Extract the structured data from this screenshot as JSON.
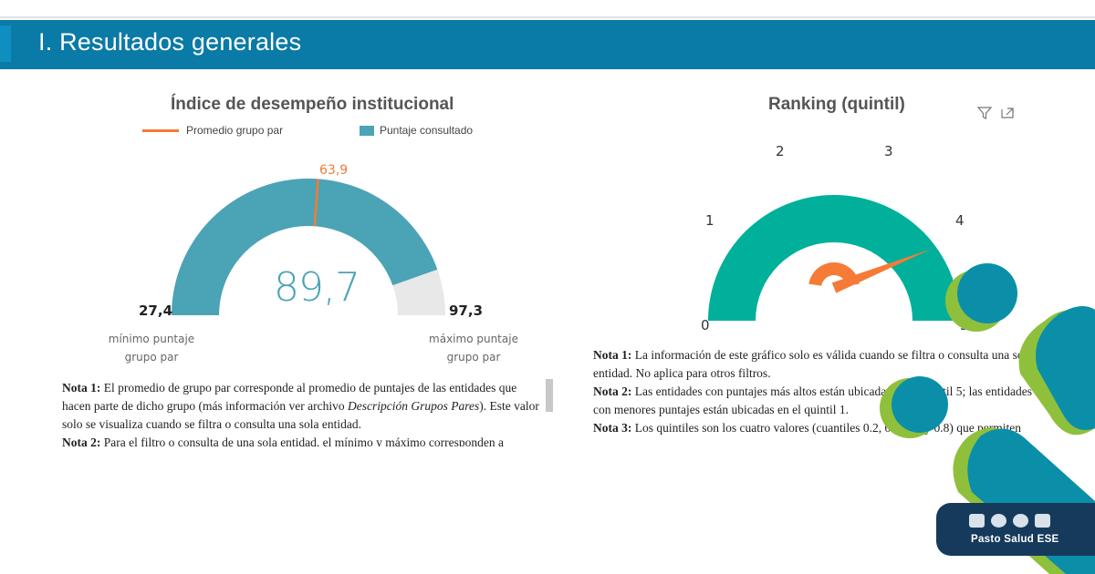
{
  "header": {
    "title": "I. Resultados generales"
  },
  "left_chart": {
    "title": "Índice de desempeño institucional",
    "legend": {
      "line_label": "Promedio grupo par",
      "bar_label": "Puntaje consultado"
    },
    "colors": {
      "value": "#4ba3b6",
      "target": "#f57b36",
      "rest": "#e8e8e8"
    },
    "chart_data": {
      "type": "gauge",
      "min": 27.4,
      "max": 97.3,
      "value": 89.7,
      "target": 63.9,
      "value_label": "89,7",
      "target_label": "63,9",
      "min_label": "27,4",
      "max_label": "97,3",
      "min_caption": [
        "mínimo puntaje",
        "grupo par"
      ],
      "max_caption": [
        "máximo puntaje",
        "grupo par"
      ]
    },
    "notes": [
      {
        "label": "Nota 1:",
        "text_a": " El promedio de grupo par corresponde al promedio de puntajes de las entidades que hacen parte de dicho grupo (más información ver archivo ",
        "italic": "Descripción Grupos Pares",
        "text_b": "). Este valor solo se visualiza cuando se filtra o consulta una sola entidad."
      },
      {
        "label": "Nota 2:",
        "text_a": " Para el filtro o consulta de una sola entidad, el mínimo y máximo corresponden a",
        "italic": "",
        "text_b": ""
      }
    ]
  },
  "right_chart": {
    "title": "Ranking (quintil)",
    "icons": {
      "filter": "filter-icon",
      "focus": "focus-mode-icon"
    },
    "colors": {
      "arc": "#00b09a",
      "needle": "#f57b36"
    },
    "chart_data": {
      "type": "gauge",
      "min": 0,
      "max": 5,
      "value": 4.95,
      "ticks": [
        "0",
        "1",
        "2",
        "3",
        "4",
        "5"
      ]
    },
    "notes": [
      {
        "label": "Nota 1:",
        "text": " La información de este gráfico solo es válida cuando se filtra o consulta una sola entidad. No aplica para otros filtros."
      },
      {
        "label": "Nota 2:",
        "text": " Las entidades con puntajes más altos están ubicadas en el quintil 5; las entidades con menores puntajes están ubicadas en el quintil 1."
      },
      {
        "label": "Nota 3:",
        "text": " Los quintiles son los cuatro valores (cuantiles 0.2, 0.4, 0.6 y 0.8) que permiten dividir una distribución en cinco partes del mismo (o aproximadamente) tamaño."
      }
    ]
  },
  "badge": {
    "brand": "Pasto Salud ESE",
    "social_icons": [
      "facebook-icon",
      "instagram-icon",
      "twitter-icon",
      "youtube-icon"
    ]
  },
  "decor_colors": {
    "teal": "#0b8fa8",
    "green": "#8fc03c"
  }
}
